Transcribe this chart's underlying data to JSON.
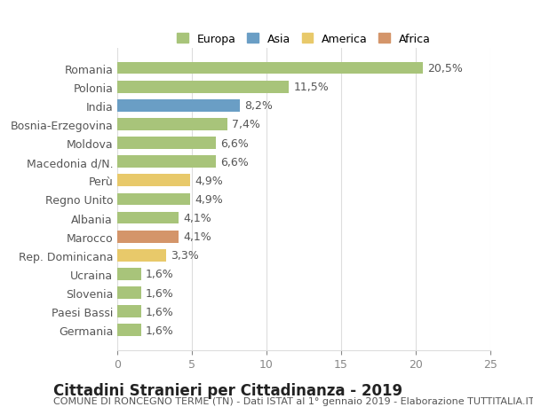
{
  "categories": [
    "Romania",
    "Polonia",
    "India",
    "Bosnia-Erzegovina",
    "Moldova",
    "Macedonia d/N.",
    "Perù",
    "Regno Unito",
    "Albania",
    "Marocco",
    "Rep. Dominicana",
    "Ucraina",
    "Slovenia",
    "Paesi Bassi",
    "Germania"
  ],
  "values": [
    20.5,
    11.5,
    8.2,
    7.4,
    6.6,
    6.6,
    4.9,
    4.9,
    4.1,
    4.1,
    3.3,
    1.6,
    1.6,
    1.6,
    1.6
  ],
  "labels": [
    "20,5%",
    "11,5%",
    "8,2%",
    "7,4%",
    "6,6%",
    "6,6%",
    "4,9%",
    "4,9%",
    "4,1%",
    "4,1%",
    "3,3%",
    "1,6%",
    "1,6%",
    "1,6%",
    "1,6%"
  ],
  "colors": [
    "#a8c47a",
    "#a8c47a",
    "#6a9ec5",
    "#a8c47a",
    "#a8c47a",
    "#a8c47a",
    "#e8c96a",
    "#a8c47a",
    "#a8c47a",
    "#d4956a",
    "#e8c96a",
    "#a8c47a",
    "#a8c47a",
    "#a8c47a",
    "#a8c47a"
  ],
  "legend_labels": [
    "Europa",
    "Asia",
    "America",
    "Africa"
  ],
  "legend_colors": [
    "#a8c47a",
    "#6a9ec5",
    "#e8c96a",
    "#d4956a"
  ],
  "xlim": [
    0,
    25
  ],
  "xticks": [
    0,
    5,
    10,
    15,
    20,
    25
  ],
  "title": "Cittadini Stranieri per Cittadinanza - 2019",
  "subtitle": "COMUNE DI RONCEGNO TERME (TN) - Dati ISTAT al 1° gennaio 2019 - Elaborazione TUTTITALIA.IT",
  "background_color": "#ffffff",
  "grid_color": "#dddddd",
  "bar_height": 0.65,
  "label_fontsize": 9,
  "tick_fontsize": 9,
  "title_fontsize": 12,
  "subtitle_fontsize": 8
}
